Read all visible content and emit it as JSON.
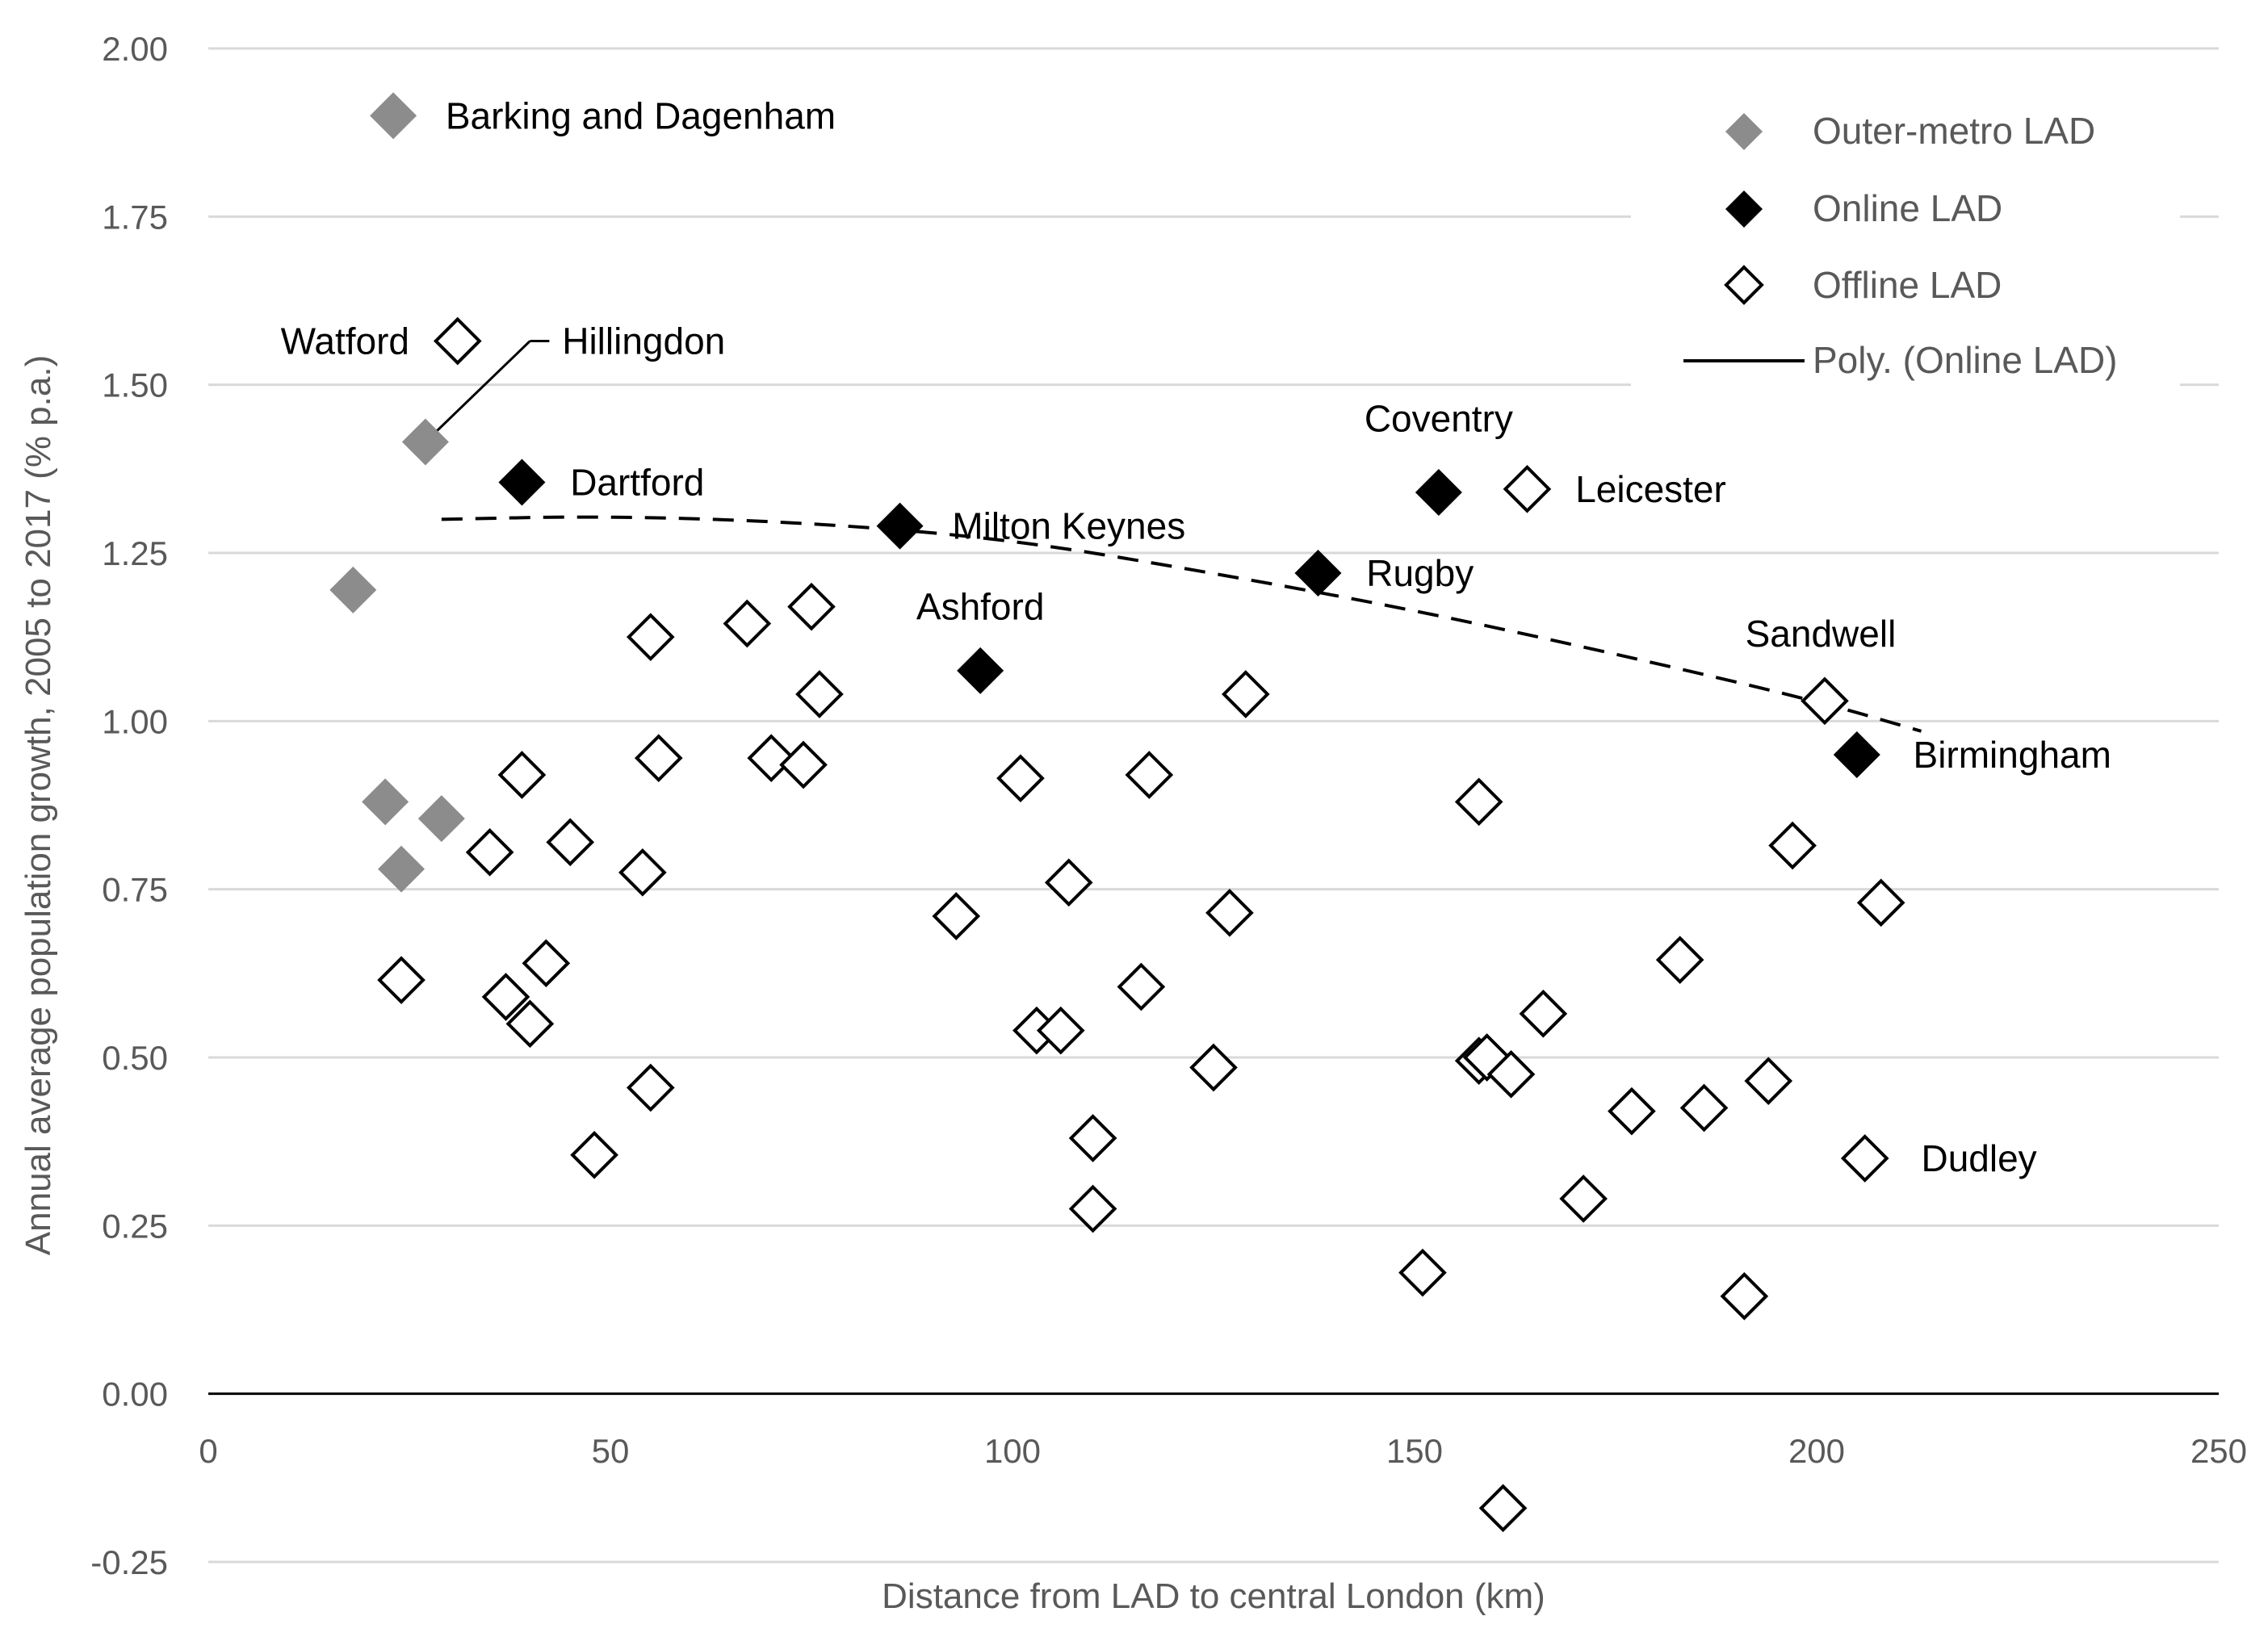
{
  "chart_data": {
    "type": "scatter",
    "title": "",
    "xlabel": "Distance from LAD to central London (km)",
    "ylabel": "Annual average population growth, 2005 to 2017 (% p.a.)",
    "xlim": [
      0,
      250
    ],
    "ylim": [
      -0.25,
      2.0
    ],
    "xticks": [
      0,
      50,
      100,
      150,
      200,
      250
    ],
    "x_tick_labels": [
      "0",
      "50",
      "100",
      "150",
      "200",
      "250"
    ],
    "yticks": [
      2.0,
      1.75,
      1.5,
      1.25,
      1.0,
      0.75,
      0.5,
      0.25,
      0.0,
      -0.25
    ],
    "y_tick_labels": [
      "2.00",
      "1.75",
      "1.50",
      "1.25",
      "1.00",
      "0.75",
      "0.50",
      "0.25",
      "0.00",
      "-0.25"
    ],
    "grid": true,
    "legend_position": "top-right",
    "colors": {
      "outer": "#8c8c8c",
      "online": "#000000",
      "offline": "#ffffff",
      "offline_stroke": "#000000"
    },
    "series": [
      {
        "name": "Outer-metro LAD",
        "key": "outer",
        "points": [
          {
            "x": 23,
            "y": 1.9
          },
          {
            "x": 27,
            "y": 1.415
          },
          {
            "x": 18,
            "y": 1.195
          },
          {
            "x": 22,
            "y": 0.88
          },
          {
            "x": 29,
            "y": 0.855
          },
          {
            "x": 24,
            "y": 0.78
          }
        ]
      },
      {
        "name": "Online LAD",
        "key": "online",
        "points": [
          {
            "x": 39,
            "y": 1.355
          },
          {
            "x": 86,
            "y": 1.29
          },
          {
            "x": 96,
            "y": 1.075
          },
          {
            "x": 138,
            "y": 1.22
          },
          {
            "x": 153,
            "y": 1.34
          },
          {
            "x": 205,
            "y": 0.95
          }
        ]
      },
      {
        "name": "Offline LAD",
        "key": "offline",
        "points": [
          {
            "x": 31,
            "y": 1.565
          },
          {
            "x": 164,
            "y": 1.345
          },
          {
            "x": 201,
            "y": 1.03
          },
          {
            "x": 55,
            "y": 1.125
          },
          {
            "x": 67,
            "y": 1.145
          },
          {
            "x": 75,
            "y": 1.17
          },
          {
            "x": 76,
            "y": 1.04
          },
          {
            "x": 56,
            "y": 0.945
          },
          {
            "x": 70,
            "y": 0.945
          },
          {
            "x": 74,
            "y": 0.935
          },
          {
            "x": 39,
            "y": 0.92
          },
          {
            "x": 35,
            "y": 0.805
          },
          {
            "x": 45,
            "y": 0.82
          },
          {
            "x": 54,
            "y": 0.775
          },
          {
            "x": 24,
            "y": 0.615
          },
          {
            "x": 37,
            "y": 0.59
          },
          {
            "x": 42,
            "y": 0.64
          },
          {
            "x": 40,
            "y": 0.55
          },
          {
            "x": 55,
            "y": 0.455
          },
          {
            "x": 48,
            "y": 0.355
          },
          {
            "x": 101,
            "y": 0.915
          },
          {
            "x": 117,
            "y": 0.92
          },
          {
            "x": 129,
            "y": 1.04
          },
          {
            "x": 93,
            "y": 0.71
          },
          {
            "x": 107,
            "y": 0.76
          },
          {
            "x": 127,
            "y": 0.715
          },
          {
            "x": 103,
            "y": 0.54
          },
          {
            "x": 106,
            "y": 0.54
          },
          {
            "x": 116,
            "y": 0.605
          },
          {
            "x": 125,
            "y": 0.485
          },
          {
            "x": 110,
            "y": 0.38
          },
          {
            "x": 110,
            "y": 0.275
          },
          {
            "x": 158,
            "y": 0.88
          },
          {
            "x": 158,
            "y": 0.495
          },
          {
            "x": 159,
            "y": 0.5
          },
          {
            "x": 162,
            "y": 0.475
          },
          {
            "x": 166,
            "y": 0.565
          },
          {
            "x": 151,
            "y": 0.18
          },
          {
            "x": 161,
            "y": -0.17
          },
          {
            "x": 171,
            "y": 0.29
          },
          {
            "x": 177,
            "y": 0.42
          },
          {
            "x": 183,
            "y": 0.645
          },
          {
            "x": 186,
            "y": 0.425
          },
          {
            "x": 191,
            "y": 0.145
          },
          {
            "x": 194,
            "y": 0.465
          },
          {
            "x": 197,
            "y": 0.815
          },
          {
            "x": 208,
            "y": 0.73
          },
          {
            "x": 206,
            "y": 0.35
          }
        ]
      }
    ],
    "trendline": {
      "name": "Poly. (Online LAD)",
      "points": [
        {
          "x": 29,
          "y": 1.3
        },
        {
          "x": 50,
          "y": 1.305
        },
        {
          "x": 75,
          "y": 1.295
        },
        {
          "x": 100,
          "y": 1.27
        },
        {
          "x": 125,
          "y": 1.22
        },
        {
          "x": 150,
          "y": 1.165
        },
        {
          "x": 175,
          "y": 1.1
        },
        {
          "x": 200,
          "y": 1.03
        },
        {
          "x": 213,
          "y": 0.985
        }
      ]
    },
    "annotations": [
      {
        "text": "Barking and Dagenham",
        "x": 29.5,
        "y": 1.9,
        "anchor": "start"
      },
      {
        "text": "Watford",
        "x": 25,
        "y": 1.565,
        "anchor": "end"
      },
      {
        "text": "Hillingdon",
        "x": 44,
        "y": 1.565,
        "anchor": "start"
      },
      {
        "text": "Dartford",
        "x": 45,
        "y": 1.355,
        "anchor": "start"
      },
      {
        "text": "Milton Keynes",
        "x": 92.5,
        "y": 1.29,
        "anchor": "start"
      },
      {
        "text": "Ashford",
        "x": 96,
        "y": 1.17,
        "anchor": "middle"
      },
      {
        "text": "Coventry",
        "x": 153,
        "y": 1.45,
        "anchor": "middle"
      },
      {
        "text": "Leicester",
        "x": 170,
        "y": 1.345,
        "anchor": "start"
      },
      {
        "text": "Rugby",
        "x": 144,
        "y": 1.22,
        "anchor": "start"
      },
      {
        "text": "Sandwell",
        "x": 200.5,
        "y": 1.13,
        "anchor": "middle"
      },
      {
        "text": "Birmingham",
        "x": 212,
        "y": 0.95,
        "anchor": "start"
      },
      {
        "text": "Dudley",
        "x": 213,
        "y": 0.35,
        "anchor": "start"
      }
    ],
    "leader_line": {
      "from": {
        "x": 27,
        "y": 1.415
      },
      "to": {
        "x": 40,
        "y": 1.565
      }
    }
  }
}
